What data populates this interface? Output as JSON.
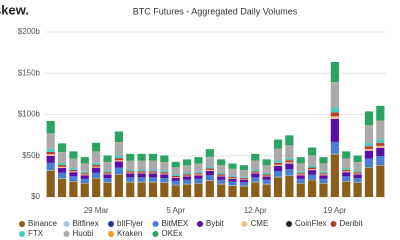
{
  "logo": "skew.",
  "chart_data": {
    "type": "stacked-bar",
    "title": "BTC Futures - Aggregated Daily Volumes",
    "categories": [
      null,
      null,
      null,
      null,
      "29 Mar",
      null,
      null,
      null,
      null,
      null,
      null,
      "5 Apr",
      null,
      null,
      null,
      null,
      null,
      null,
      "12 Apr",
      null,
      null,
      null,
      null,
      null,
      null,
      "19 Apr",
      null,
      null,
      null,
      null
    ],
    "ylim": [
      0,
      200
    ],
    "yticks": [
      {
        "value": 0,
        "label": "$0"
      },
      {
        "value": 50,
        "label": "$50b"
      },
      {
        "value": 100,
        "label": "$100b"
      },
      {
        "value": 150,
        "label": "$150b"
      },
      {
        "value": 200,
        "label": "$200b"
      }
    ],
    "grid": true,
    "legend": "bottom",
    "series": [
      {
        "name": "Binance",
        "color": "#8b5e1a",
        "values": [
          31.6,
          22.1,
          18.7,
          16.3,
          22.4,
          17,
          27.2,
          17.7,
          17.7,
          17.7,
          17,
          14.3,
          15.3,
          16.3,
          19.7,
          15.3,
          13.6,
          12.9,
          17.7,
          15.3,
          23.8,
          25.5,
          16.3,
          20.4,
          16.3,
          51.7,
          18.7,
          17,
          35.7,
          38.1
        ]
      },
      {
        "name": "Bitfinex",
        "color": "#9ec8e0",
        "values": [
          0.8,
          0.8,
          0.8,
          0.8,
          0.8,
          0.8,
          0.8,
          0.8,
          0.8,
          0.8,
          0.8,
          0.8,
          0.8,
          0.8,
          0.8,
          0.8,
          0.8,
          0.8,
          0.8,
          0.8,
          0.8,
          0.8,
          0.8,
          0.8,
          0.8,
          0.8,
          0.8,
          0.8,
          0.8,
          0.8
        ]
      },
      {
        "name": "bitFlyer",
        "color": "#1f3c88",
        "values": [
          0.6,
          0.6,
          0.6,
          0.6,
          0.6,
          0.6,
          0.6,
          0.6,
          0.6,
          0.6,
          0.6,
          0.6,
          0.6,
          0.6,
          0.6,
          0.6,
          0.6,
          0.6,
          0.6,
          0.6,
          0.6,
          0.6,
          0.6,
          0.6,
          0.6,
          0.6,
          0.6,
          0.6,
          0.6,
          0.6
        ]
      },
      {
        "name": "BitMEX",
        "color": "#4a7fd4",
        "values": [
          8.4,
          5.9,
          5,
          4.3,
          5.9,
          4.5,
          7.2,
          4.7,
          4.7,
          4.7,
          4.5,
          3.8,
          4.1,
          4.3,
          5.2,
          4.1,
          3.6,
          3.4,
          4.7,
          4.1,
          6.3,
          6.8,
          4.3,
          5.4,
          4.3,
          13.7,
          5,
          4.5,
          9.5,
          10.1
        ]
      },
      {
        "name": "Bybit",
        "color": "#5b0fa8",
        "values": [
          8.4,
          5.9,
          5,
          4.3,
          5.9,
          4.5,
          7.2,
          4.7,
          4.7,
          4.7,
          4.5,
          3.8,
          4.1,
          4.3,
          5.2,
          4.1,
          3.6,
          3.4,
          4.7,
          4.1,
          6.3,
          6.8,
          4.3,
          5.4,
          4.3,
          28,
          5,
          4.5,
          9.5,
          10.1
        ]
      },
      {
        "name": "CME",
        "color": "#f5c08a",
        "values": [
          1.9,
          1.3,
          1.1,
          1,
          1.3,
          1,
          1.6,
          1,
          1,
          1,
          1,
          0.8,
          0.9,
          1,
          1.2,
          0.9,
          0.8,
          0.8,
          1,
          0.9,
          1.4,
          1.5,
          1,
          1.2,
          1,
          3,
          1.1,
          1,
          2.1,
          2.2
        ]
      },
      {
        "name": "CoinFlex",
        "color": "#222222",
        "values": [
          0.1,
          0.1,
          0.1,
          0.1,
          0.1,
          0.1,
          0.1,
          0.1,
          0.1,
          0.1,
          0.1,
          0.1,
          0.1,
          0.1,
          0.1,
          0.1,
          0.1,
          0.1,
          0.1,
          0.1,
          0.1,
          0.1,
          0.1,
          0.1,
          0.1,
          0.1,
          0.1,
          0.1,
          0.1,
          0.1
        ]
      },
      {
        "name": "Deribit",
        "color": "#c0392b",
        "values": [
          2.8,
          2,
          1.7,
          1.4,
          2,
          1.5,
          2.4,
          1.6,
          1.6,
          1.6,
          1.5,
          1.3,
          1.4,
          1.4,
          1.7,
          1.4,
          1.2,
          1.1,
          1.6,
          1.4,
          2.1,
          2.3,
          1.4,
          1.8,
          1.4,
          4.6,
          1.7,
          1.5,
          3.2,
          3.4
        ]
      },
      {
        "name": "FTX",
        "color": "#4fc9c0",
        "values": [
          3.7,
          2.6,
          2.2,
          1.9,
          2.6,
          2,
          3.2,
          2.1,
          2.1,
          2.1,
          2,
          1.7,
          1.8,
          1.9,
          2.3,
          1.8,
          1.6,
          1.5,
          2.1,
          1.8,
          2.8,
          3,
          1.9,
          2.4,
          1.9,
          6.1,
          2.2,
          2,
          4.2,
          4.5
        ]
      },
      {
        "name": "Huobi",
        "color": "#aaaaaa",
        "values": [
          18.6,
          13,
          11,
          9.6,
          13.2,
          10,
          16,
          10.4,
          10.4,
          10.4,
          10,
          8.4,
          9,
          9.6,
          11.6,
          9,
          8,
          7.6,
          10.4,
          9,
          14,
          15,
          9.6,
          12,
          9.6,
          30.4,
          11,
          10,
          21,
          22.4
        ]
      },
      {
        "name": "Kraken",
        "color": "#f29a2e",
        "values": [
          0.3,
          0.3,
          0.3,
          0.3,
          0.3,
          0.3,
          0.3,
          0.3,
          0.3,
          0.3,
          0.3,
          0.3,
          0.3,
          0.3,
          0.3,
          0.3,
          0.3,
          0.3,
          0.3,
          0.3,
          0.3,
          0.3,
          0.3,
          0.3,
          0.3,
          0.3,
          0.3,
          0.3,
          0.3,
          0.3
        ]
      },
      {
        "name": "OKEx",
        "color": "#2aa364",
        "values": [
          14.9,
          10.4,
          8.8,
          7.7,
          10.6,
          8,
          12.8,
          8.3,
          8.3,
          8.3,
          8,
          6.7,
          7.2,
          7.7,
          9.3,
          7.2,
          6.4,
          6.1,
          8.3,
          7.2,
          11.2,
          12,
          7.7,
          9.6,
          7.7,
          24.3,
          8.8,
          8,
          16.8,
          17.9
        ]
      }
    ]
  }
}
